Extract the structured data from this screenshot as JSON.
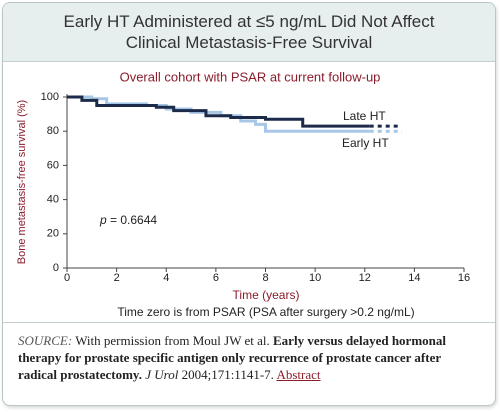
{
  "chart_data": {
    "type": "step-line",
    "title": "Early HT Administered at ≤5 ng/mL Did Not Affect Clinical Metastasis-Free Survival",
    "subtitle": "Overall cohort with PSAR at current follow-up",
    "x_label": "Time (years)",
    "y_label": "Bone metastasis-free survival (%)",
    "note": "Time zero is from PSAR (PSA after surgery >0.2 ng/mL)",
    "annotation_symbol": "p",
    "annotation": "= 0.6644",
    "xlim": [
      0,
      16
    ],
    "xticks": [
      0,
      2,
      4,
      6,
      8,
      10,
      12,
      14,
      16
    ],
    "ylim": [
      0,
      100
    ],
    "yticks": [
      0,
      20,
      40,
      60,
      80,
      100
    ],
    "series": [
      {
        "name": "Late HT",
        "color": "#1c2b4a",
        "x": [
          0,
          0.6,
          0.6,
          1.2,
          1.2,
          3.6,
          3.6,
          4.3,
          4.3,
          5.6,
          5.6,
          6.6,
          6.6,
          8,
          8,
          9.5,
          9.5,
          12.2,
          13.4
        ],
        "values": [
          100,
          100,
          98,
          98,
          95,
          95,
          94,
          94,
          92,
          92,
          89,
          89,
          88,
          88,
          87,
          87,
          83,
          83,
          83
        ]
      },
      {
        "name": "Early HT",
        "color": "#a7c7e7",
        "x": [
          0,
          1,
          1,
          1.6,
          1.6,
          3.2,
          3.2,
          4,
          4,
          5,
          5,
          6.2,
          6.2,
          7,
          7,
          7.6,
          7.6,
          8,
          8,
          12.2,
          13.5
        ],
        "values": [
          100,
          100,
          99,
          99,
          96,
          96,
          95,
          95,
          93,
          93,
          91,
          91,
          89,
          89,
          86,
          86,
          84,
          84,
          80,
          80,
          80
        ]
      }
    ]
  },
  "source": {
    "label": "SOURCE:",
    "text": "With permission from Moul JW et al.",
    "title": "Early versus delayed hormonal therapy for prostate specific antigen only recurrence of prostate cancer after radical prostatectomy.",
    "journal": "J Urol",
    "citation": "2004;171:1141-7.",
    "link": "Abstract"
  }
}
